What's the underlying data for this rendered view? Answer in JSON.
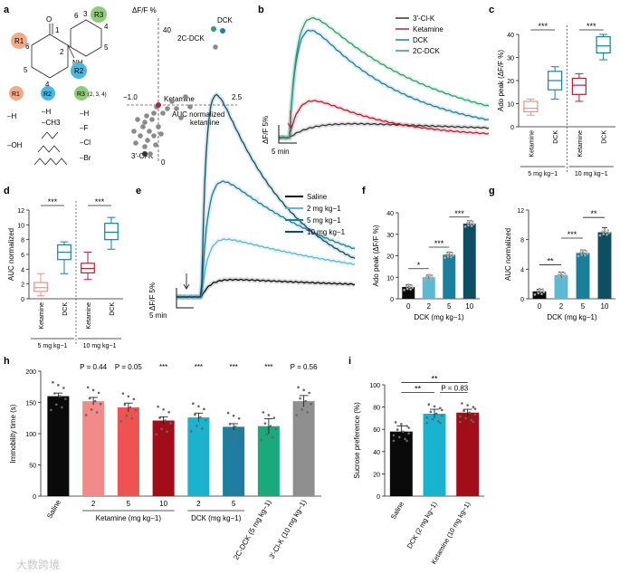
{
  "watermark": "大数跨境",
  "panel_letters": {
    "a": "a",
    "b": "b",
    "c": "c",
    "d": "d",
    "e": "e",
    "f": "f",
    "g": "g",
    "h": "h",
    "i": "i"
  },
  "colors": {
    "ketamine_light": "#f08d8d",
    "ketamine": "#b22234",
    "ketamine_dark": "#a10d18",
    "dck": "#1f7da0",
    "dck_box": "#167f8c",
    "cl": "#333333",
    "c2": "#2e9e6b",
    "d2": "#5bb9d2",
    "d5": "#1a7f9a",
    "d10": "#0e4e63",
    "saline": "#0a0a0a",
    "gray": "#8f8f8f",
    "cyan": "#1ab3cf",
    "red": "#ef5350",
    "green": "#1aa97a"
  },
  "panel_a": {
    "r_labels": [
      "R1",
      "R2",
      "R3"
    ],
    "r_suffix": "(2, 3, 4)",
    "ring_numbers": [
      "1",
      "2",
      "3",
      "4",
      "5",
      "6",
      "3",
      "4",
      "5",
      "6"
    ],
    "atoms": [
      "O",
      "NH"
    ],
    "r1_options": [
      "–H",
      "–OH"
    ],
    "r2_options": [
      "–H",
      "–CH3"
    ],
    "r3_options": [
      "–H",
      "–F",
      "–Cl",
      "–Br"
    ],
    "scatter": {
      "ylabel": "ΔF/F %",
      "ytop": "40",
      "yzero": "0",
      "xleft": "−1.0",
      "xright": "2.5",
      "xlabel_line1": "AUC normalized",
      "xlabel_line2": "ketamine",
      "labels": {
        "dck": "DCK",
        "c2": "2C-DCK",
        "ket": "Ketamine",
        "cl": "3′-Cl-K"
      }
    }
  },
  "chart_data": [
    {
      "panel": "b",
      "type": "line",
      "title": "",
      "series": [
        {
          "name": "3′-Cl-K",
          "color": "#333333",
          "peak": 4.5
        },
        {
          "name": "Ketamine",
          "color": "#b22234",
          "peak": 12
        },
        {
          "name": "DCK",
          "color": "#1f7da0",
          "peak": 35
        },
        {
          "name": "2C-DCK",
          "color": "#2e9e6b",
          "peak": 39
        }
      ],
      "scale_y": "ΔF/F 5%",
      "scale_x": "5 min"
    },
    {
      "panel": "c",
      "type": "box",
      "ylabel": "Ado peak (ΔF/F %)",
      "ylim": [
        0,
        40
      ],
      "yticks": [
        "0",
        "10",
        "20",
        "30",
        "40"
      ],
      "categories": [
        "Ketamine",
        "DCK",
        "Ketamine",
        "DCK"
      ],
      "groups": [
        "5 mg kg−1",
        "10 mg kg−1"
      ],
      "boxes": [
        {
          "min": 5,
          "q1": 6.5,
          "med": 8,
          "q3": 11,
          "max": 12
        },
        {
          "min": 12,
          "q1": 16,
          "med": 20,
          "q3": 24,
          "max": 26
        },
        {
          "min": 11,
          "q1": 14,
          "med": 18,
          "q3": 21,
          "max": 23
        },
        {
          "min": 29,
          "q1": 32,
          "med": 35,
          "q3": 39,
          "max": 40
        }
      ],
      "sig": [
        "***",
        "***"
      ]
    },
    {
      "panel": "d",
      "type": "box",
      "ylabel": "AUC normalized",
      "ylim": [
        0,
        12
      ],
      "yticks": [
        "0",
        "2",
        "4",
        "6",
        "8",
        "10",
        "12"
      ],
      "categories": [
        "Ketamine",
        "DCK",
        "Ketamine",
        "DCK"
      ],
      "groups": [
        "5 mg kg−1",
        "10 mg kg−1"
      ],
      "boxes": [
        {
          "min": 0.4,
          "q1": 1.0,
          "med": 1.5,
          "q3": 2.2,
          "max": 3.4
        },
        {
          "min": 3.4,
          "q1": 5.3,
          "med": 6.3,
          "q3": 7.3,
          "max": 7.7
        },
        {
          "min": 2.6,
          "q1": 3.5,
          "med": 4.1,
          "q3": 4.8,
          "max": 6.3
        },
        {
          "min": 6.7,
          "q1": 8.0,
          "med": 9.0,
          "q3": 10.2,
          "max": 11.0
        }
      ],
      "sig": [
        "***",
        "***"
      ]
    },
    {
      "panel": "e",
      "type": "line",
      "series": [
        {
          "name": "Saline",
          "color": "#0a0a0a",
          "peak": 3
        },
        {
          "name": "2 mg kg−1",
          "color": "#5bb9d2",
          "peak": 10
        },
        {
          "name": "5 mg kg−1",
          "color": "#1a7f9a",
          "peak": 20
        },
        {
          "name": "10 mg kg−1",
          "color": "#0e4e63",
          "peak": 35
        }
      ],
      "scale_y": "ΔF/F 5%",
      "scale_x": "5 min"
    },
    {
      "panel": "f",
      "type": "bar",
      "ylabel": "Ado peak (ΔF/F %)",
      "ylim": [
        0,
        40
      ],
      "yticks": [
        "0",
        "10",
        "20",
        "30",
        "40"
      ],
      "categories": [
        "0",
        "2",
        "5",
        "10"
      ],
      "xlabel": "DCK (mg kg−1)",
      "values": [
        5.5,
        10,
        20.5,
        35
      ],
      "errors": [
        1,
        1,
        1.2,
        1.3
      ],
      "sig": [
        "*",
        "***",
        "***"
      ]
    },
    {
      "panel": "g",
      "type": "bar",
      "ylabel": "AUC normalized",
      "ylim": [
        0,
        12
      ],
      "yticks": [
        "0",
        "4",
        "8",
        "12"
      ],
      "categories": [
        "0",
        "2",
        "5",
        "10"
      ],
      "xlabel": "DCK (mg kg−1)",
      "values": [
        1.0,
        3.2,
        6.2,
        9.0
      ],
      "errors": [
        0.3,
        0.4,
        0.4,
        0.6
      ],
      "sig": [
        "**",
        "***",
        "**"
      ]
    },
    {
      "panel": "h",
      "type": "bar",
      "ylabel": "Immobility time (s)",
      "ylim": [
        0,
        200
      ],
      "yticks": [
        "0",
        "50",
        "100",
        "150",
        "200"
      ],
      "categories": [
        "Saline",
        "2",
        "5",
        "10",
        "2",
        "5",
        "2C-DCK (5 mg kg−1)",
        "3′-Cl-K (10 mg kg−1)"
      ],
      "group_labels": [
        "Ketamine (mg kg−1)",
        "DCK (mg kg−1)"
      ],
      "values": [
        160,
        152,
        142,
        121,
        126,
        111,
        112,
        152
      ],
      "errors": [
        5,
        6,
        7,
        6,
        7,
        5,
        12,
        9
      ],
      "annotations": [
        "P = 0.44",
        "P = 0.05",
        "***",
        "***",
        "***",
        "***",
        "P = 0.56"
      ]
    },
    {
      "panel": "i",
      "type": "bar",
      "ylabel": "Sucrose preference (%)",
      "ylim": [
        0,
        100
      ],
      "yticks": [
        "0",
        "20",
        "40",
        "60",
        "80",
        "100"
      ],
      "categories": [
        "Saline",
        "DCK (2 mg kg−1)",
        "Ketamine (10 mg kg−1)"
      ],
      "values": [
        58,
        74,
        75
      ],
      "errors": [
        5,
        4,
        3
      ],
      "sig": [
        "**",
        "**",
        "P = 0.83"
      ]
    }
  ]
}
